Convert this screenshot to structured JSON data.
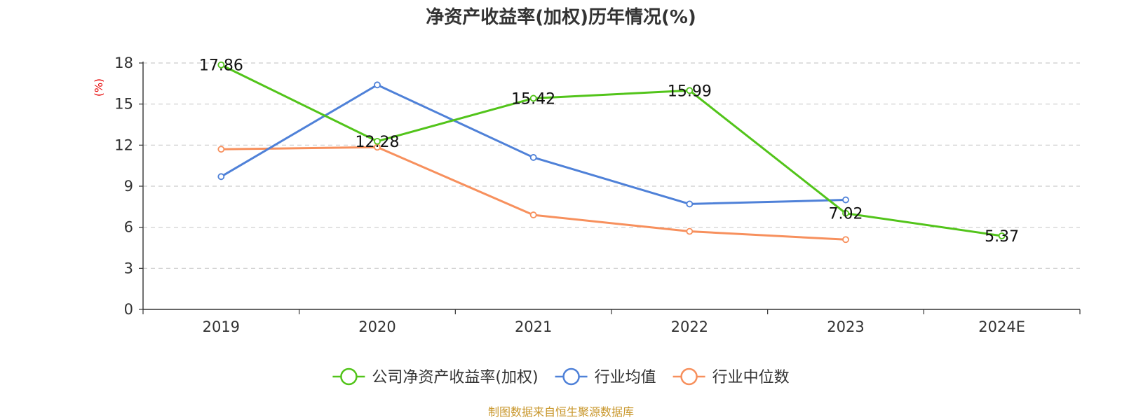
{
  "chart_data": {
    "type": "line",
    "title": "净资产收益率(加权)历年情况(%)",
    "ylabel": "(%)",
    "xlabel": "",
    "categories": [
      "2019",
      "2020",
      "2021",
      "2022",
      "2023",
      "2024E"
    ],
    "ylim": [
      0,
      18
    ],
    "yticks": [
      0,
      3,
      6,
      9,
      12,
      15,
      18
    ],
    "grid": true,
    "legend_position": "bottom",
    "series": [
      {
        "name": "公司净资产收益率(加权)",
        "color": "#52c41a",
        "values": [
          17.86,
          12.28,
          15.42,
          15.99,
          7.02,
          5.37
        ],
        "data_labels": [
          "17.86",
          "12.28",
          "15.42",
          "15.99",
          "7.02",
          "5.37"
        ]
      },
      {
        "name": "行业均值",
        "color": "#4f81d8",
        "values": [
          9.7,
          16.4,
          11.1,
          7.7,
          8.0,
          null
        ]
      },
      {
        "name": "行业中位数",
        "color": "#f7905d",
        "values": [
          11.7,
          11.85,
          6.9,
          5.7,
          5.1,
          null
        ]
      }
    ],
    "unit_color": "#e60000"
  },
  "footer": {
    "text": "制图数据来自恒生聚源数据库",
    "color": "#c8962a"
  }
}
